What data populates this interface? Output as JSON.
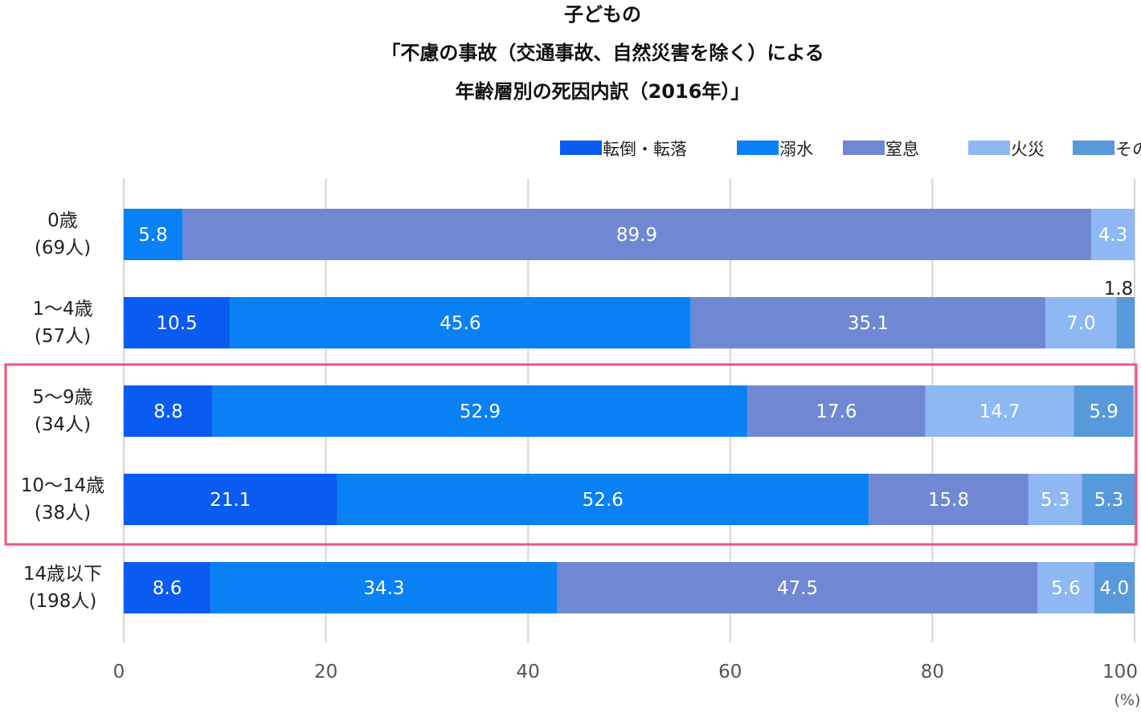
{
  "chart_data": {
    "type": "bar",
    "orientation": "horizontal",
    "stacked": true,
    "title_lines": [
      "子どもの",
      "「不慮の事故（交通事故、自然災害を除く）による",
      "年齢層別の死因内訳（2016年）」"
    ],
    "categories": [
      {
        "line1": "0歳",
        "line2": "(69人)"
      },
      {
        "line1": "1〜4歳",
        "line2": "(57人)"
      },
      {
        "line1": "5〜9歳",
        "line2": "(34人)"
      },
      {
        "line1": "10〜14歳",
        "line2": "(38人)"
      },
      {
        "line1": "14歳以下",
        "line2": "(198人)"
      }
    ],
    "series": [
      {
        "name": "転倒・転落",
        "color": "#0a5bf0",
        "values": [
          0,
          10.5,
          8.8,
          21.1,
          8.6
        ],
        "labels": [
          "",
          "10.5",
          "8.8",
          "21.1",
          "8.6"
        ]
      },
      {
        "name": "溺水",
        "color": "#0a80f5",
        "values": [
          5.8,
          45.6,
          52.9,
          52.6,
          34.3
        ],
        "labels": [
          "5.8",
          "45.6",
          "52.9",
          "52.6",
          "34.3"
        ]
      },
      {
        "name": "窒息",
        "color": "#7088d3",
        "values": [
          89.9,
          35.1,
          17.6,
          15.8,
          47.5
        ],
        "labels": [
          "89.9",
          "35.1",
          "17.6",
          "15.8",
          "47.5"
        ]
      },
      {
        "name": "火災",
        "color": "#8db8f3",
        "values": [
          4.3,
          7.0,
          14.7,
          5.3,
          5.6
        ],
        "labels": [
          "4.3",
          "7.0",
          "14.7",
          "5.3",
          "5.6"
        ]
      },
      {
        "name": "その他",
        "color": "#5899dc",
        "values": [
          0,
          1.8,
          5.9,
          5.3,
          4.0
        ],
        "labels": [
          "",
          "1.8",
          "5.9",
          "5.3",
          "4.0"
        ]
      }
    ],
    "outside_labels": [
      {
        "category_index": 1,
        "series_index": 4
      }
    ],
    "x_ticks": [
      "0",
      "20",
      "40",
      "60",
      "80",
      "100"
    ],
    "xlim": [
      0,
      100
    ],
    "x_unit": "(%)",
    "grid": "vertical",
    "legend_position": "top-right",
    "highlight": {
      "category_indices": [
        2,
        3
      ],
      "color": "#f0557a"
    }
  }
}
